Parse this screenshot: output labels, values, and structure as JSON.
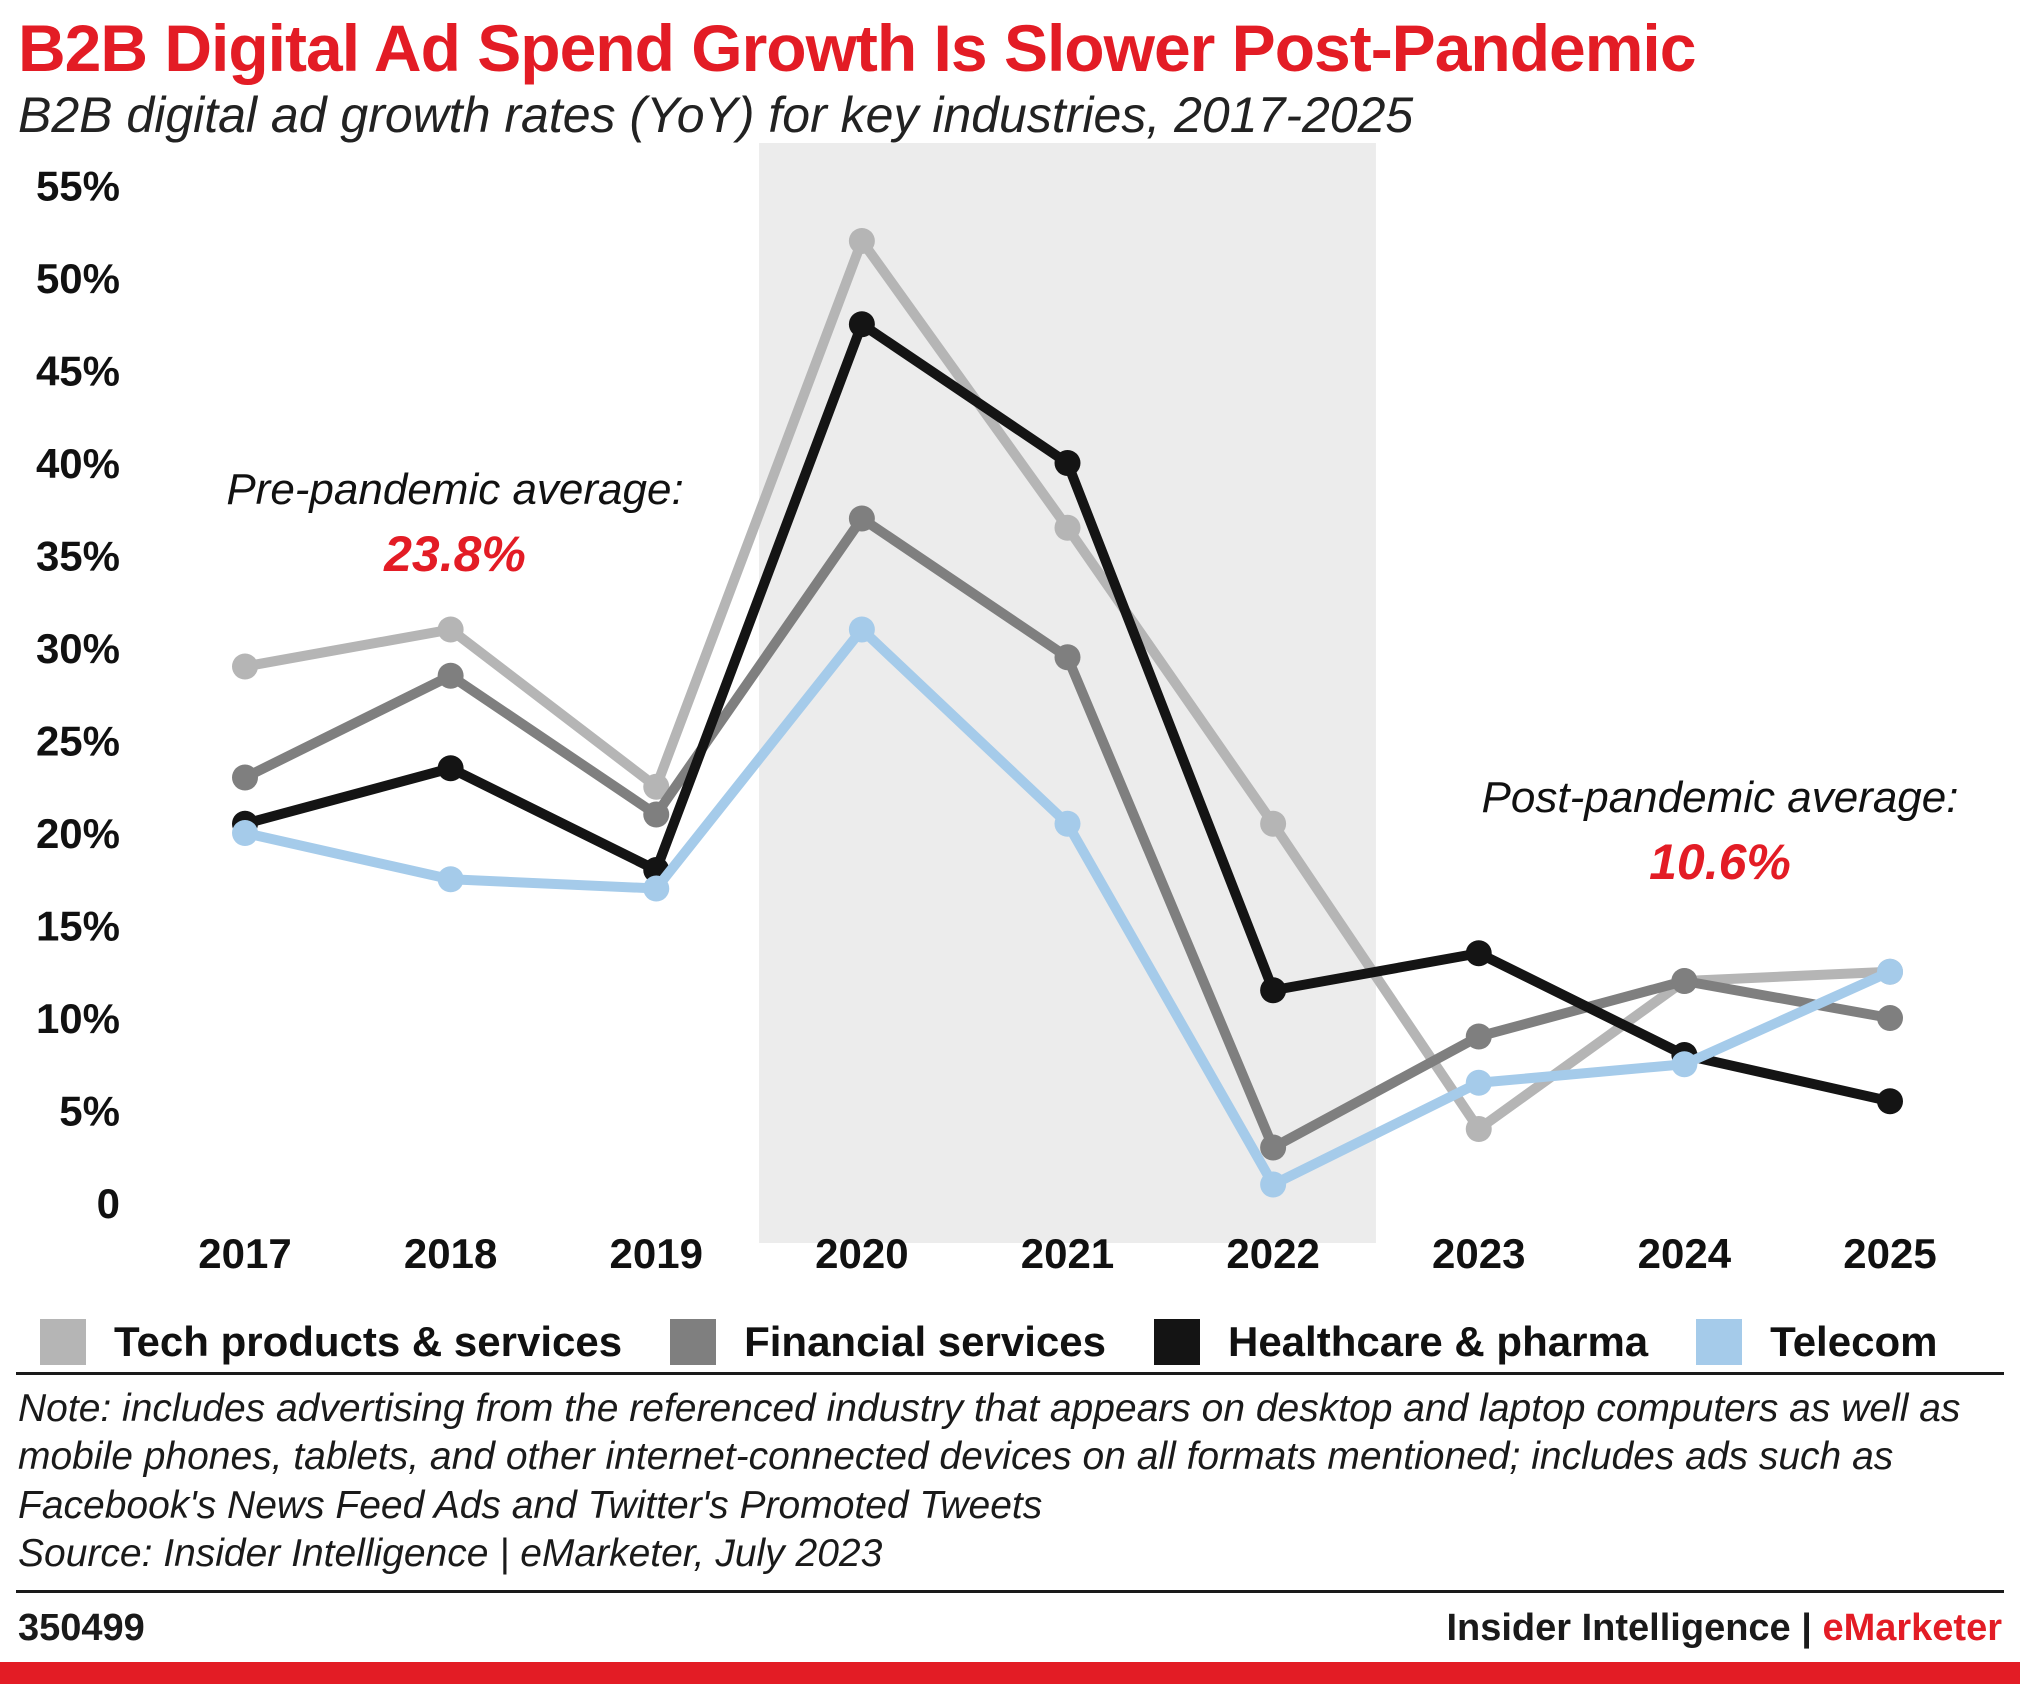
{
  "colors": {
    "accent_red": "#e31c25",
    "text": "#1a1a1a",
    "pandemic_band": "#ececec"
  },
  "header": {
    "title": "B2B Digital Ad Spend Growth Is Slower Post-Pandemic",
    "subtitle": "B2B digital ad growth rates (YoY) for key industries, 2017-2025"
  },
  "chart_data": {
    "type": "line",
    "title": "B2B digital ad growth rates (YoY) for key industries, 2017-2025",
    "x": [
      2017,
      2018,
      2019,
      2020,
      2021,
      2022,
      2023,
      2024,
      2025
    ],
    "xlabel": "",
    "ylabel": "",
    "ylim": [
      0,
      55
    ],
    "ytick_step": 5,
    "ytick_format": "percent",
    "grid": false,
    "legend_position": "bottom",
    "band": {
      "from": 2019.5,
      "to": 2022.5,
      "color": "#ececec"
    },
    "series": [
      {
        "name": "Tech products & services",
        "color": "#b5b5b5",
        "values": [
          29,
          31,
          22.5,
          52,
          36.5,
          20.5,
          4,
          12,
          12.5
        ]
      },
      {
        "name": "Financial services",
        "color": "#7f7f7f",
        "values": [
          23,
          28.5,
          21,
          37,
          29.5,
          3,
          9,
          12,
          10
        ]
      },
      {
        "name": "Healthcare & pharma",
        "color": "#141414",
        "values": [
          20.5,
          23.5,
          18,
          47.5,
          40,
          11.5,
          13.5,
          8,
          5.5
        ]
      },
      {
        "name": "Telecom",
        "color": "#a5cbea",
        "values": [
          20,
          17.5,
          17,
          31,
          20.5,
          1,
          6.5,
          7.5,
          12.5
        ]
      }
    ],
    "annotations": [
      {
        "id": "pre-pandemic",
        "label": "Pre-pandemic average:",
        "value": "23.8%"
      },
      {
        "id": "post-pandemic",
        "label": "Post-pandemic average:",
        "value": "10.6%"
      }
    ]
  },
  "notes": {
    "note": "Note: includes advertising from the referenced industry that appears on desktop and laptop computers as well as mobile phones, tablets, and other internet-connected devices on all formats mentioned; includes ads such as Facebook's News Feed Ads and Twitter's Promoted Tweets",
    "source": "Source: Insider Intelligence | eMarketer, July 2023"
  },
  "footer": {
    "chart_id": "350499",
    "brand_prefix": "Insider Intelligence | ",
    "brand_name": "eMarketer"
  }
}
